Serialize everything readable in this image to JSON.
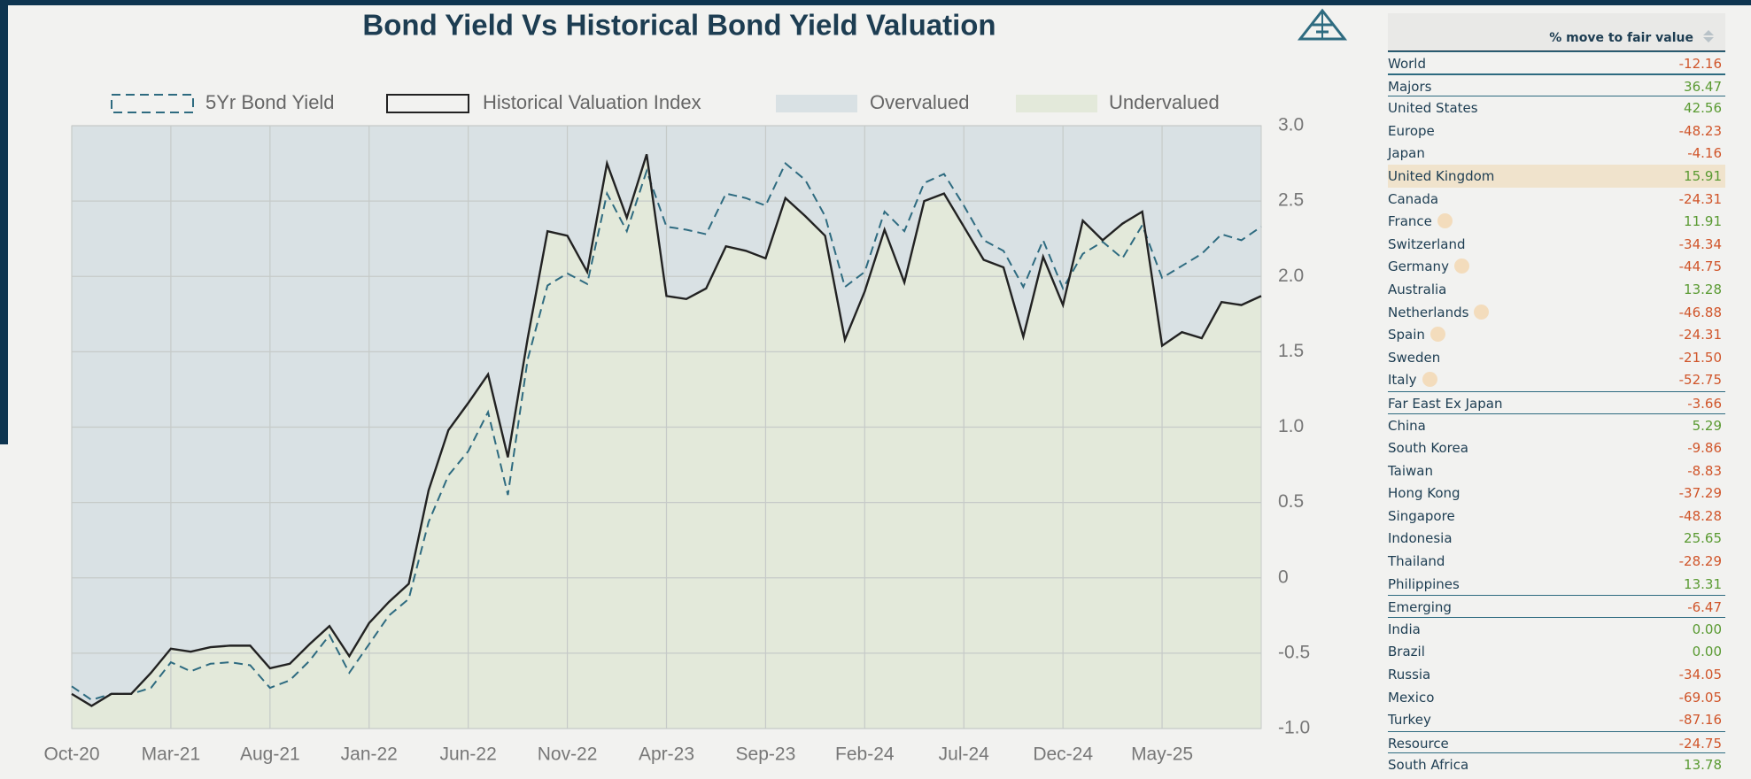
{
  "chart_data": {
    "type": "line",
    "title": "Bond Yield Vs Historical Bond Yield Valuation",
    "categories": [
      "Oct-20",
      null,
      null,
      null,
      null,
      "Mar-21",
      null,
      null,
      null,
      null,
      "Aug-21",
      null,
      null,
      null,
      null,
      "Jan-22",
      null,
      null,
      null,
      null,
      "Jun-22",
      null,
      null,
      null,
      null,
      "Nov-22",
      null,
      null,
      null,
      null,
      "Apr-23",
      null,
      null,
      null,
      null,
      "Sep-23",
      null,
      null,
      null,
      null,
      "Feb-24",
      null,
      null,
      null,
      null,
      "Jul-24",
      null,
      null,
      null,
      null,
      "Dec-24",
      null,
      null,
      null,
      null,
      "May-25",
      null,
      null,
      null,
      null,
      null
    ],
    "series": [
      {
        "name": "5Yr Bond Yield",
        "color": "#2e6b80",
        "dashed": true,
        "values": [
          -0.72,
          -0.81,
          -0.77,
          -0.77,
          -0.73,
          -0.56,
          -0.62,
          -0.57,
          -0.56,
          -0.58,
          -0.73,
          -0.68,
          -0.55,
          -0.38,
          -0.63,
          -0.44,
          -0.25,
          -0.14,
          0.37,
          0.68,
          0.84,
          1.1,
          0.55,
          1.45,
          1.94,
          2.02,
          1.95,
          2.55,
          2.3,
          2.7,
          2.33,
          2.31,
          2.28,
          2.55,
          2.52,
          2.47,
          2.75,
          2.64,
          2.4,
          1.93,
          2.03,
          2.43,
          2.3,
          2.62,
          2.68,
          2.47,
          2.24,
          2.17,
          1.93,
          2.24,
          1.92,
          2.15,
          2.23,
          2.12,
          2.34,
          1.99,
          2.07,
          2.15,
          2.28,
          2.24,
          2.33
        ]
      },
      {
        "name": "Historical Valuation Index",
        "color": "#222222",
        "dashed": false,
        "values": [
          -0.77,
          -0.85,
          -0.77,
          -0.77,
          -0.63,
          -0.47,
          -0.49,
          -0.46,
          -0.45,
          -0.45,
          -0.6,
          -0.57,
          -0.44,
          -0.32,
          -0.52,
          -0.3,
          -0.16,
          -0.04,
          0.58,
          0.98,
          1.16,
          1.35,
          0.8,
          1.59,
          2.3,
          2.27,
          2.03,
          2.75,
          2.39,
          2.81,
          1.87,
          1.85,
          1.92,
          2.2,
          2.17,
          2.12,
          2.52,
          2.4,
          2.27,
          1.58,
          1.9,
          2.31,
          1.96,
          2.5,
          2.55,
          2.33,
          2.11,
          2.06,
          1.6,
          2.13,
          1.81,
          2.37,
          2.24,
          2.35,
          2.43,
          1.54,
          1.63,
          1.59,
          1.83,
          1.81,
          1.87
        ]
      }
    ],
    "areas": [
      {
        "name": "Overvalued",
        "color": "#d9e1e4"
      },
      {
        "name": "Undervalued",
        "color": "#e3e9da"
      }
    ],
    "ylim": [
      -1,
      3
    ],
    "yticks": [
      {
        "value": -1,
        "label": "-1.0"
      },
      {
        "value": -0.5,
        "label": "-0.5"
      },
      0,
      {
        "value": 0.5,
        "label": "0.5"
      },
      {
        "value": 1,
        "label": "1.0"
      },
      {
        "value": 1.5,
        "label": "1.5"
      },
      {
        "value": 2,
        "label": "2.0"
      },
      {
        "value": 2.5,
        "label": "2.5"
      },
      {
        "value": 3,
        "label": "3.0"
      }
    ],
    "grid": true
  },
  "table": {
    "header": "% move to fair value",
    "rows": [
      {
        "name": "World",
        "value": "-12.16",
        "group": true
      },
      {
        "name": "Majors",
        "value": "36.47",
        "group": true
      },
      {
        "name": "United States",
        "value": "42.56"
      },
      {
        "name": "Europe",
        "value": "-48.23"
      },
      {
        "name": "Japan",
        "value": "-4.16"
      },
      {
        "name": "United Kingdom",
        "value": "15.91",
        "selected": true
      },
      {
        "name": "Canada",
        "value": "-24.31"
      },
      {
        "name": "France",
        "value": "11.91",
        "euro": true
      },
      {
        "name": "Switzerland",
        "value": "-34.34"
      },
      {
        "name": "Germany",
        "value": "-44.75",
        "euro": true
      },
      {
        "name": "Australia",
        "value": "13.28"
      },
      {
        "name": "Netherlands",
        "value": "-46.88",
        "euro": true
      },
      {
        "name": "Spain",
        "value": "-24.31",
        "euro": true
      },
      {
        "name": "Sweden",
        "value": "-21.50"
      },
      {
        "name": "Italy",
        "value": "-52.75",
        "euro": true
      },
      {
        "name": "Far East Ex Japan",
        "value": "-3.66",
        "group": true
      },
      {
        "name": "China",
        "value": "5.29"
      },
      {
        "name": "South Korea",
        "value": "-9.86"
      },
      {
        "name": "Taiwan",
        "value": "-8.83"
      },
      {
        "name": "Hong Kong",
        "value": "-37.29"
      },
      {
        "name": "Singapore",
        "value": "-48.28"
      },
      {
        "name": "Indonesia",
        "value": "25.65"
      },
      {
        "name": "Thailand",
        "value": "-28.29"
      },
      {
        "name": "Philippines",
        "value": "13.31"
      },
      {
        "name": "Emerging",
        "value": "-6.47",
        "group": true
      },
      {
        "name": "India",
        "value": "0.00"
      },
      {
        "name": "Brazil",
        "value": "0.00"
      },
      {
        "name": "Russia",
        "value": "-34.05"
      },
      {
        "name": "Mexico",
        "value": "-69.05"
      },
      {
        "name": "Turkey",
        "value": "-87.16"
      },
      {
        "name": "Resource",
        "value": "-24.75",
        "group": true
      },
      {
        "name": "South Africa",
        "value": "13.78"
      }
    ]
  }
}
